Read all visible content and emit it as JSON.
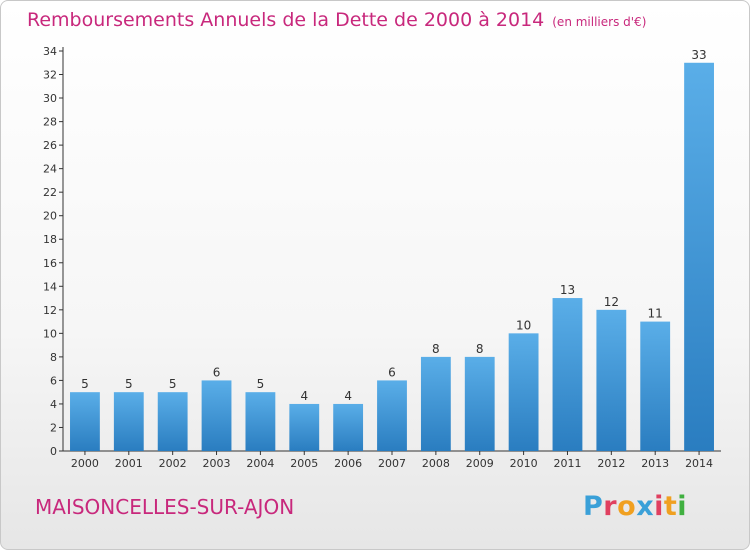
{
  "header": {
    "title": "Remboursements Annuels de la Dette de 2000 à 2014",
    "subtitle": "(en milliers d'€)"
  },
  "footer": {
    "commune": "MAISONCELLES-SUR-AJON",
    "logo": "Proxiti"
  },
  "colors": {
    "title": "#c8287c",
    "bar_light": "#5aaee8",
    "bar_dark": "#2a7dc0",
    "axis": "#333333",
    "logo_letters": [
      "#3aa0d8",
      "#e04060",
      "#f0a020",
      "#3aa0d8",
      "#e04060",
      "#f0a020",
      "#40b040"
    ]
  },
  "chart_data": {
    "type": "bar",
    "categories": [
      "2000",
      "2001",
      "2002",
      "2003",
      "2004",
      "2005",
      "2006",
      "2007",
      "2008",
      "2009",
      "2010",
      "2011",
      "2012",
      "2013",
      "2014"
    ],
    "values": [
      5,
      5,
      5,
      6,
      5,
      4,
      4,
      6,
      8,
      8,
      10,
      13,
      12,
      11,
      33
    ],
    "title": "Remboursements Annuels de la Dette de 2000 à 2014",
    "subtitle": "(en milliers d'€)",
    "xlabel": "",
    "ylabel": "",
    "ylim": [
      0,
      34
    ],
    "yticks": [
      0,
      2,
      4,
      6,
      8,
      10,
      12,
      14,
      16,
      18,
      20,
      22,
      24,
      26,
      28,
      30,
      32,
      34
    ],
    "grid": false,
    "data_labels": true
  }
}
